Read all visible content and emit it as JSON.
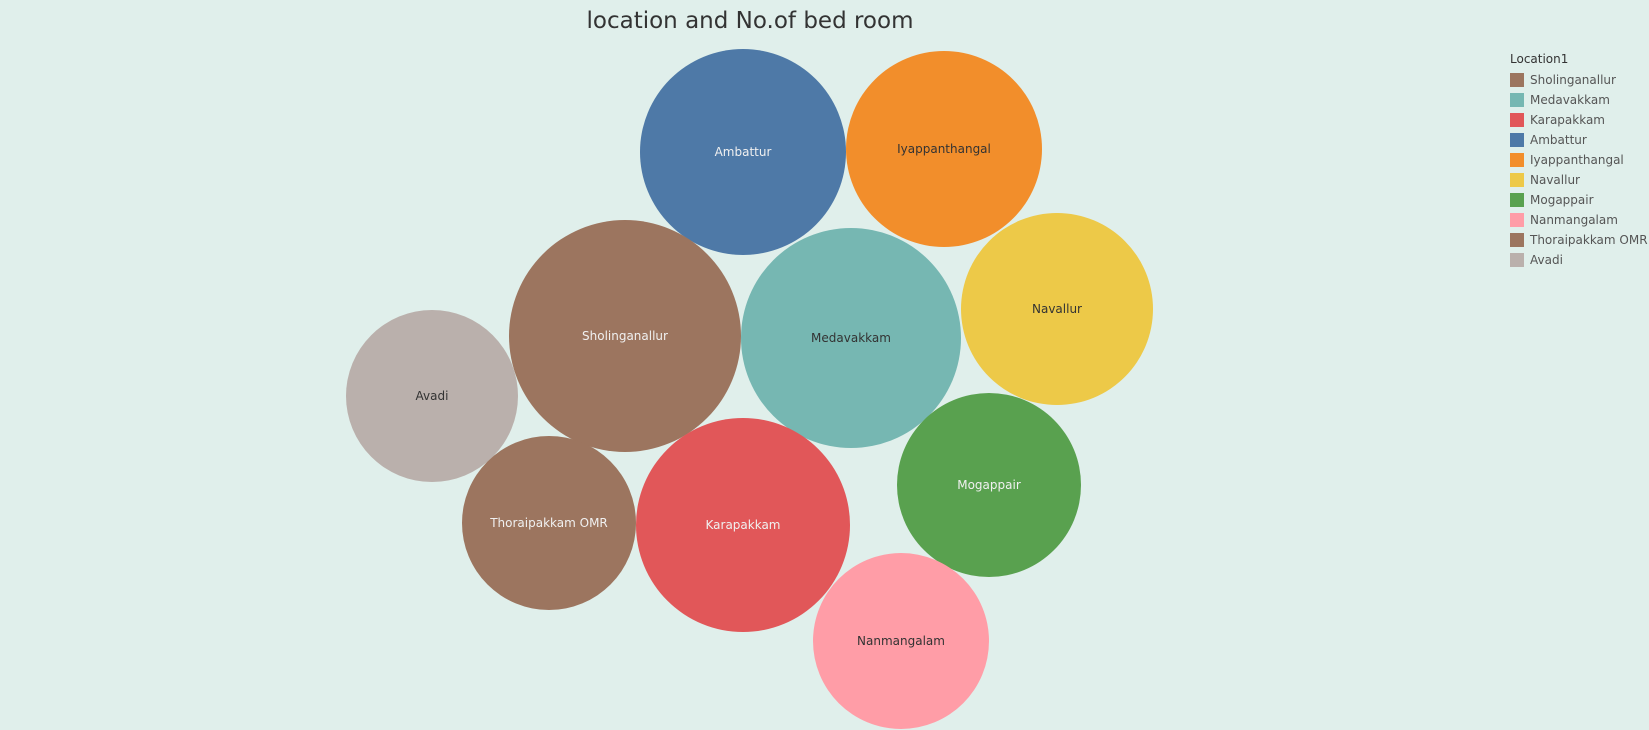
{
  "chart_data": {
    "type": "bubble",
    "title": "location and No.of bed room",
    "legend_title": "Location1",
    "legend_position": "top-right",
    "bubbles": [
      {
        "label": "Ambattur",
        "color": "#4e79a7",
        "text_color": "#f0f0f0"
      },
      {
        "label": "Iyappanthangal",
        "color": "#f28e2b",
        "text_color": "#333333"
      },
      {
        "label": "Sholinganallur",
        "color": "#9c755f",
        "text_color": "#f0f0f0"
      },
      {
        "label": "Medavakkam",
        "color": "#76b7b2",
        "text_color": "#333333"
      },
      {
        "label": "Navallur",
        "color": "#edc948",
        "text_color": "#333333"
      },
      {
        "label": "Avadi",
        "color": "#bab0ac",
        "text_color": "#333333"
      },
      {
        "label": "Mogappair",
        "color": "#59a14f",
        "text_color": "#f0f0f0"
      },
      {
        "label": "Thoraipakkam OMR",
        "color": "#9c755f",
        "text_color": "#f0f0f0"
      },
      {
        "label": "Karapakkam",
        "color": "#e15759",
        "text_color": "#f0f0f0"
      },
      {
        "label": "Nanmangalam",
        "color": "#ff9da7",
        "text_color": "#333333"
      }
    ],
    "legend": [
      {
        "label": "Sholinganallur",
        "color": "#9c755f"
      },
      {
        "label": "Medavakkam",
        "color": "#76b7b2"
      },
      {
        "label": "Karapakkam",
        "color": "#e15759"
      },
      {
        "label": "Ambattur",
        "color": "#4e79a7"
      },
      {
        "label": "Iyappanthangal",
        "color": "#f28e2b"
      },
      {
        "label": "Navallur",
        "color": "#edc948"
      },
      {
        "label": "Mogappair",
        "color": "#59a14f"
      },
      {
        "label": "Nanmangalam",
        "color": "#ff9da7"
      },
      {
        "label": "Thoraipakkam OMR",
        "color": "#9c755f"
      },
      {
        "label": "Avadi",
        "color": "#bab0ac"
      }
    ]
  }
}
